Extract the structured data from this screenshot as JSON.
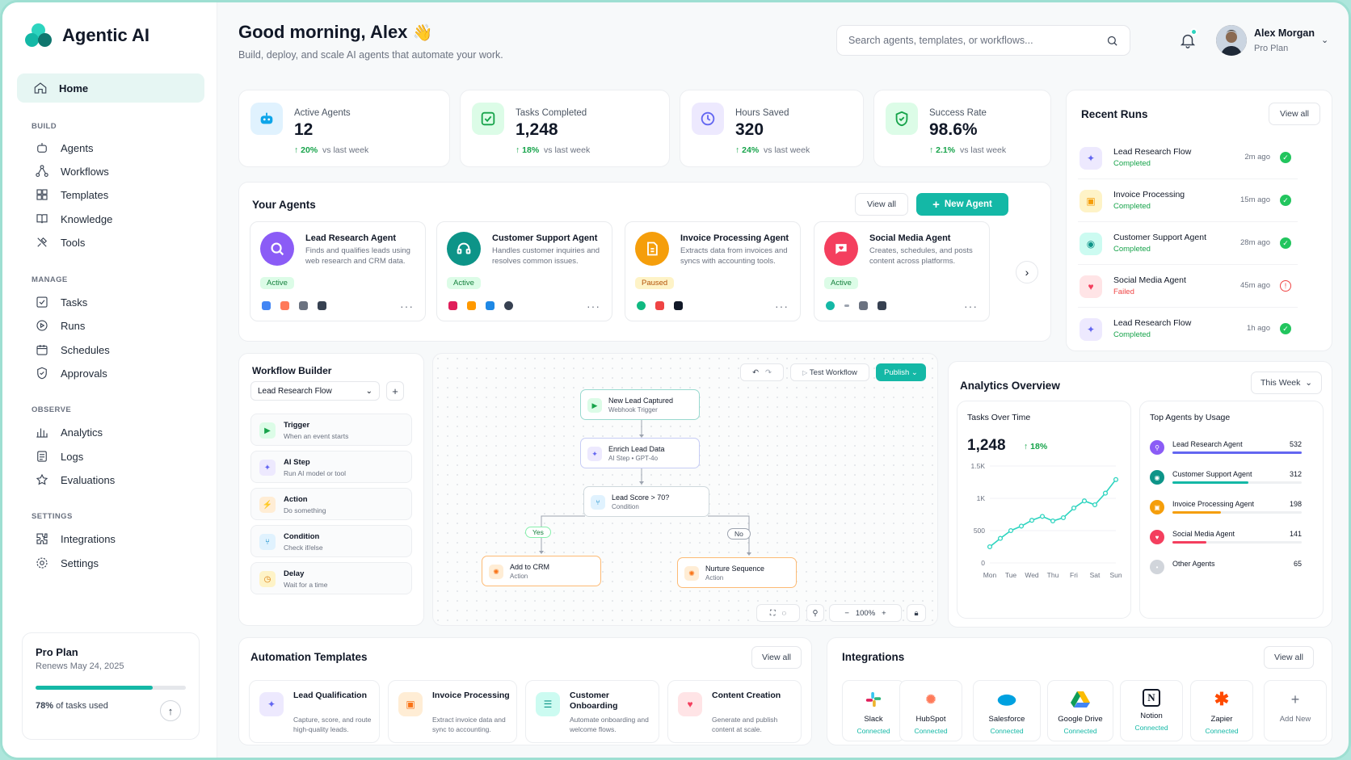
{
  "brand": {
    "name": "Agentic AI"
  },
  "nav": {
    "home": "Home",
    "sections": [
      {
        "title": "BUILD",
        "items": [
          "Agents",
          "Workflows",
          "Templates",
          "Knowledge",
          "Tools"
        ]
      },
      {
        "title": "MANAGE",
        "items": [
          "Tasks",
          "Runs",
          "Schedules",
          "Approvals"
        ]
      },
      {
        "title": "OBSERVE",
        "items": [
          "Analytics",
          "Logs",
          "Evaluations"
        ]
      },
      {
        "title": "SETTINGS",
        "items": [
          "Integrations",
          "Settings"
        ]
      }
    ]
  },
  "plan": {
    "title": "Pro Plan",
    "renews": "Renews May 24, 2025",
    "used_pct": "78%",
    "used_text": "of tasks used",
    "used_fraction": 0.78
  },
  "header": {
    "greeting": "Good morning, Alex",
    "sub": "Build, deploy, and scale AI agents that automate your work.",
    "search_placeholder": "Search agents, templates, or workflows...",
    "user_name": "Alex Morgan",
    "user_plan": "Pro Plan"
  },
  "stats": [
    {
      "label": "Active Agents",
      "value": "12",
      "change": "20%",
      "suffix": "vs last week"
    },
    {
      "label": "Tasks Completed",
      "value": "1,248",
      "change": "18%",
      "suffix": "vs last week"
    },
    {
      "label": "Hours Saved",
      "value": "320",
      "change": "24%",
      "suffix": "vs last week"
    },
    {
      "label": "Success Rate",
      "value": "98.6%",
      "change": "2.1%",
      "suffix": "vs last week"
    }
  ],
  "agents": {
    "title": "Your Agents",
    "view_all": "View all",
    "new_agent": "New Agent",
    "items": [
      {
        "name": "Lead Research Agent",
        "desc": "Finds and qualifies leads using web research and CRM data.",
        "status": "Active"
      },
      {
        "name": "Customer Support Agent",
        "desc": "Handles customer inquiries and resolves common issues.",
        "status": "Active"
      },
      {
        "name": "Invoice Processing Agent",
        "desc": "Extracts data from invoices and syncs with accounting tools.",
        "status": "Paused"
      },
      {
        "name": "Social Media Agent",
        "desc": "Creates, schedules, and posts content across platforms.",
        "status": "Active"
      }
    ]
  },
  "recent_runs": {
    "title": "Recent Runs",
    "view_all": "View all",
    "items": [
      {
        "name": "Lead Research Flow",
        "status": "Completed",
        "time": "2m ago"
      },
      {
        "name": "Invoice Processing",
        "status": "Completed",
        "time": "15m ago"
      },
      {
        "name": "Customer Support Agent",
        "status": "Completed",
        "time": "28m ago"
      },
      {
        "name": "Social Media Agent",
        "status": "Failed",
        "time": "45m ago"
      },
      {
        "name": "Lead Research Flow",
        "status": "Completed",
        "time": "1h ago"
      }
    ]
  },
  "workflow": {
    "title": "Workflow Builder",
    "selected": "Lead Research Flow",
    "steps": [
      {
        "title": "Trigger",
        "desc": "When an event starts"
      },
      {
        "title": "AI Step",
        "desc": "Run AI model or tool"
      },
      {
        "title": "Action",
        "desc": "Do something"
      },
      {
        "title": "Condition",
        "desc": "Check if/else"
      },
      {
        "title": "Delay",
        "desc": "Wait for a time"
      }
    ],
    "test": "Test Workflow",
    "publish": "Publish",
    "zoom": "100%",
    "nodes": {
      "trigger": {
        "title": "New Lead Captured",
        "desc": "Webhook Trigger"
      },
      "enrich": {
        "title": "Enrich Lead Data",
        "desc": "AI Step • GPT-4o"
      },
      "cond": {
        "title": "Lead Score > 70?",
        "desc": "Condition"
      },
      "crm": {
        "title": "Add to CRM",
        "desc": "Action"
      },
      "nurture": {
        "title": "Nurture Sequence",
        "desc": "Action"
      }
    },
    "yes": "Yes",
    "no": "No"
  },
  "analytics": {
    "title": "Analytics Overview",
    "range": "This Week",
    "tasks": {
      "title": "Tasks Over Time",
      "value": "1,248",
      "change": "18%"
    },
    "top": {
      "title": "Top Agents by Usage",
      "items": [
        {
          "name": "Lead Research Agent",
          "value": "532",
          "n": 532,
          "color": "#6366f1"
        },
        {
          "name": "Customer Support Agent",
          "value": "312",
          "n": 312,
          "color": "#14b8a6"
        },
        {
          "name": "Invoice Processing Agent",
          "value": "198",
          "n": 198,
          "color": "#f59e0b"
        },
        {
          "name": "Social Media Agent",
          "value": "141",
          "n": 141,
          "color": "#f43f5e"
        },
        {
          "name": "Other Agents",
          "value": "65",
          "n": 65,
          "color": "#d1d5db"
        }
      ]
    }
  },
  "chart_data": {
    "type": "line",
    "categories": [
      "Mon",
      "Tue",
      "Wed",
      "Thu",
      "Fri",
      "Sat",
      "Sun"
    ],
    "x": [
      0,
      0.5,
      1,
      1.5,
      2,
      2.5,
      3,
      3.5,
      4,
      4.5,
      5,
      5.5,
      6
    ],
    "values": [
      250,
      380,
      500,
      570,
      660,
      720,
      650,
      700,
      850,
      960,
      900,
      1080,
      1290
    ],
    "ylim": [
      0,
      1500
    ],
    "yticks": [
      "0",
      "500",
      "1K",
      "1.5K"
    ],
    "ytick_values": [
      0,
      500,
      1000,
      1500
    ],
    "color": "#2dd4bf"
  },
  "templates": {
    "title": "Automation Templates",
    "view_all": "View all",
    "items": [
      {
        "title": "Lead Qualification",
        "desc": "Capture, score, and route high-quality leads."
      },
      {
        "title": "Invoice Processing",
        "desc": "Extract invoice data and sync to accounting."
      },
      {
        "title": "Customer Onboarding",
        "desc": "Automate onboarding and welcome flows."
      },
      {
        "title": "Content Creation",
        "desc": "Generate and publish content at scale."
      }
    ]
  },
  "integrations": {
    "title": "Integrations",
    "view_all": "View all",
    "items": [
      {
        "name": "Slack",
        "status": "Connected"
      },
      {
        "name": "HubSpot",
        "status": "Connected"
      },
      {
        "name": "Salesforce",
        "status": "Connected"
      },
      {
        "name": "Google Drive",
        "status": "Connected"
      },
      {
        "name": "Notion",
        "status": "Connected"
      },
      {
        "name": "Zapier",
        "status": "Connected"
      }
    ],
    "add": "Add New"
  }
}
